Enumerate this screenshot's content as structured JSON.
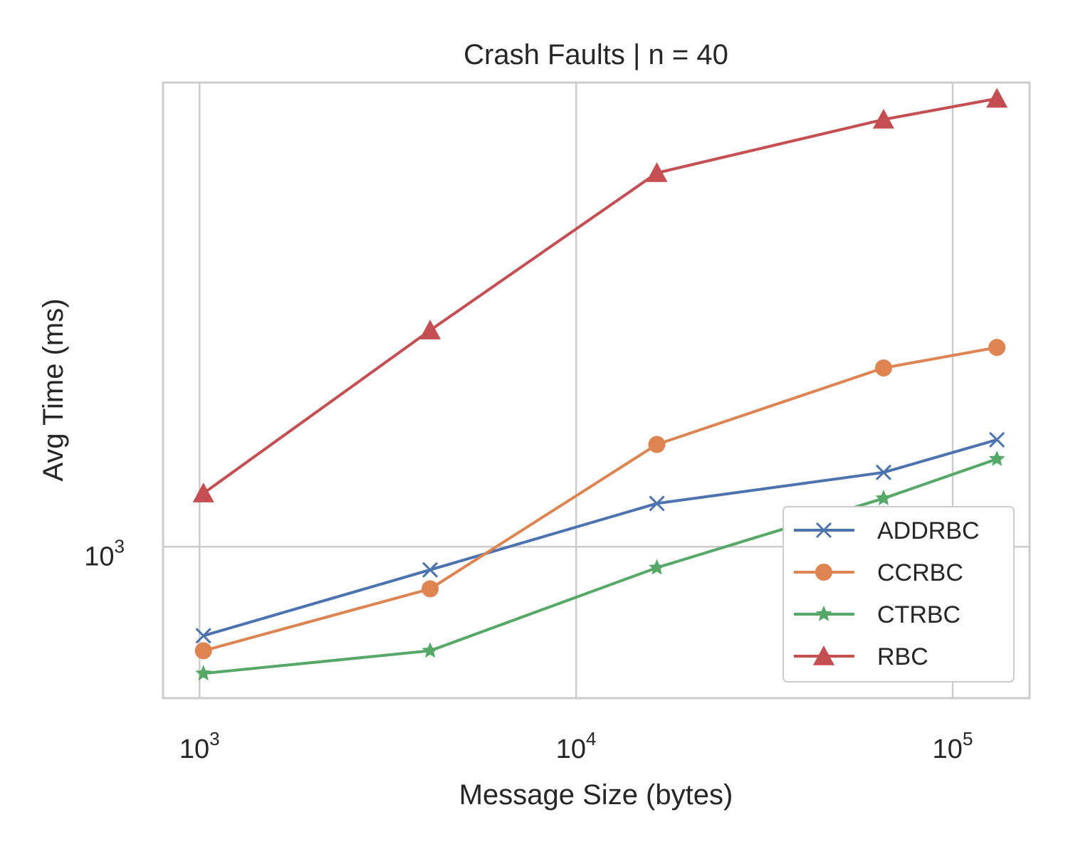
{
  "chart_data": {
    "type": "line",
    "title": "Crash Faults | n = 40",
    "xlabel": "Message Size (bytes)",
    "ylabel": "Avg Time (ms)",
    "xscale": "log",
    "yscale": "log",
    "xlim": [
      800,
      160000
    ],
    "ylim": [
      690,
      3120
    ],
    "grid": true,
    "legend_position": "lower right",
    "x": [
      1024,
      4096,
      16384,
      65536,
      131072
    ],
    "x_ticks": [
      {
        "value": 1000,
        "base": "10",
        "exp": "3"
      },
      {
        "value": 10000,
        "base": "10",
        "exp": "4"
      },
      {
        "value": 100000,
        "base": "10",
        "exp": "5"
      }
    ],
    "y_ticks": [
      {
        "value": 1000,
        "base": "10",
        "exp": "3"
      }
    ],
    "series": [
      {
        "name": "ADDRBC",
        "color": "#4c72b0",
        "marker": "x",
        "values": [
          804,
          945,
          1112,
          1200,
          1300
        ]
      },
      {
        "name": "CCRBC",
        "color": "#dd8452",
        "marker": "circle",
        "values": [
          775,
          902,
          1285,
          1550,
          1630
        ]
      },
      {
        "name": "CTRBC",
        "color": "#55a868",
        "marker": "star",
        "values": [
          733,
          775,
          950,
          1126,
          1240
        ]
      },
      {
        "name": "RBC",
        "color": "#c44e52",
        "marker": "triangle",
        "values": [
          1140,
          1700,
          2500,
          2850,
          3000
        ]
      }
    ]
  }
}
